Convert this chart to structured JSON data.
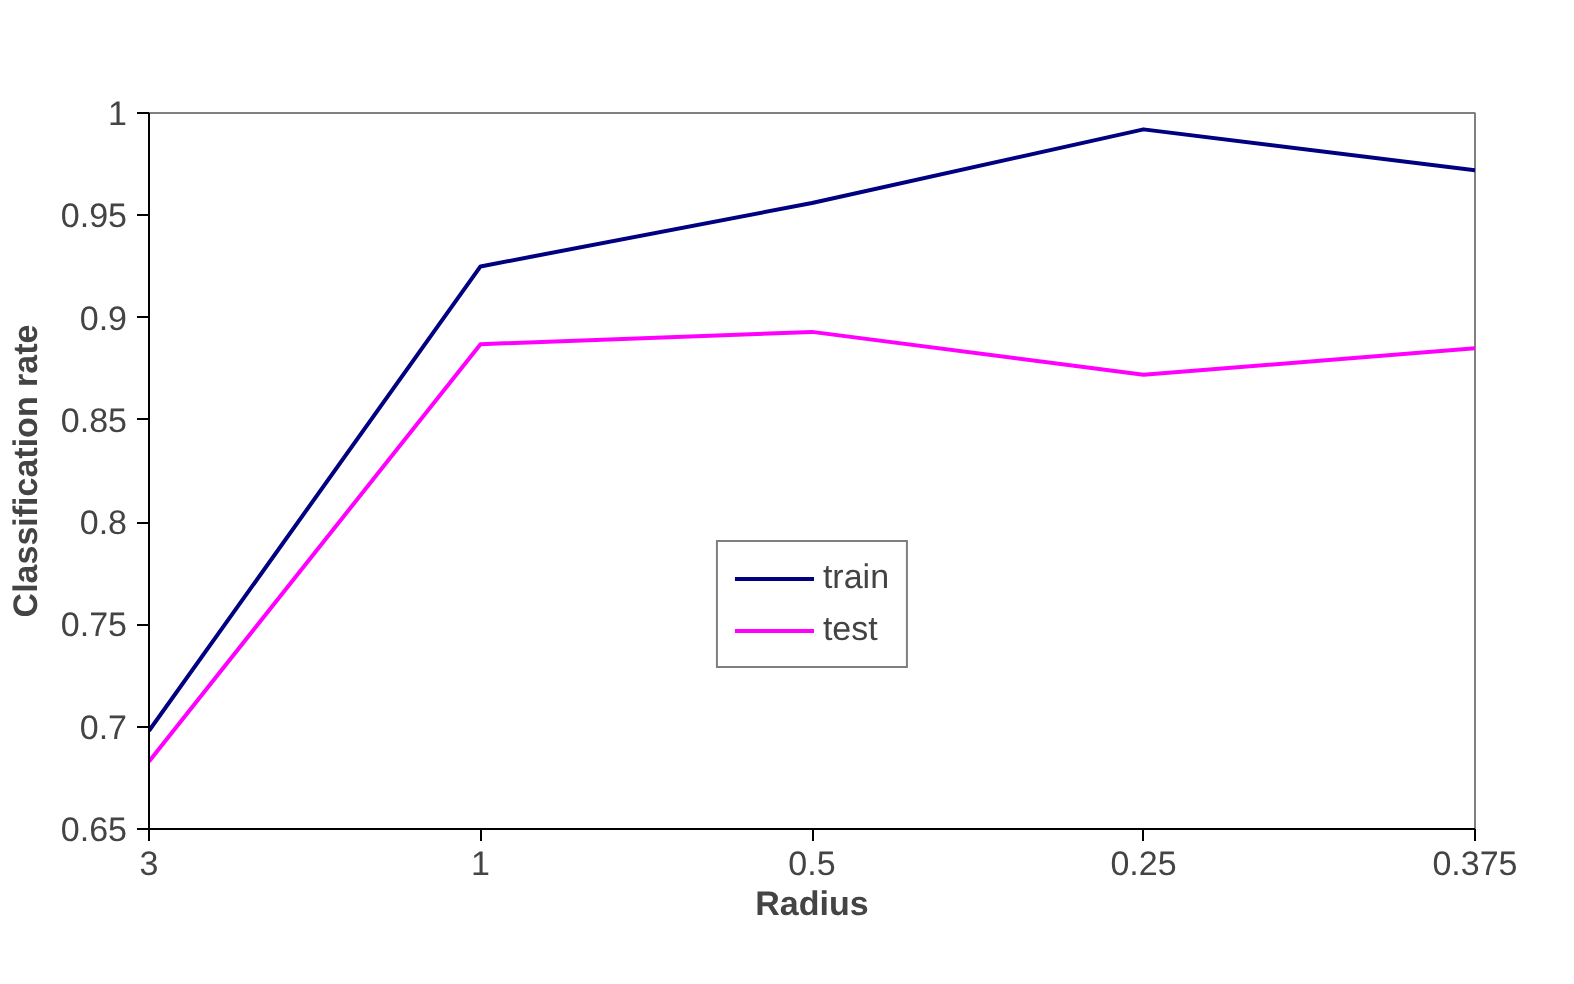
{
  "chart_data": {
    "type": "line",
    "xlabel": "Radius",
    "ylabel": "Classification rate",
    "categories": [
      "3",
      "1",
      "0.5",
      "0.25",
      "0.375"
    ],
    "series": [
      {
        "name": "train",
        "color": "#000080",
        "values": [
          0.698,
          0.925,
          0.956,
          0.992,
          0.972
        ]
      },
      {
        "name": "test",
        "color": "#ff00ff",
        "values": [
          0.683,
          0.887,
          0.893,
          0.872,
          0.885
        ]
      }
    ],
    "ylim": [
      0.65,
      1
    ],
    "yticks": [
      0.65,
      0.7,
      0.75,
      0.8,
      0.85,
      0.9,
      0.95,
      1
    ],
    "grid": false,
    "legend": "bottom",
    "marker": "none",
    "line_style": "solid"
  }
}
